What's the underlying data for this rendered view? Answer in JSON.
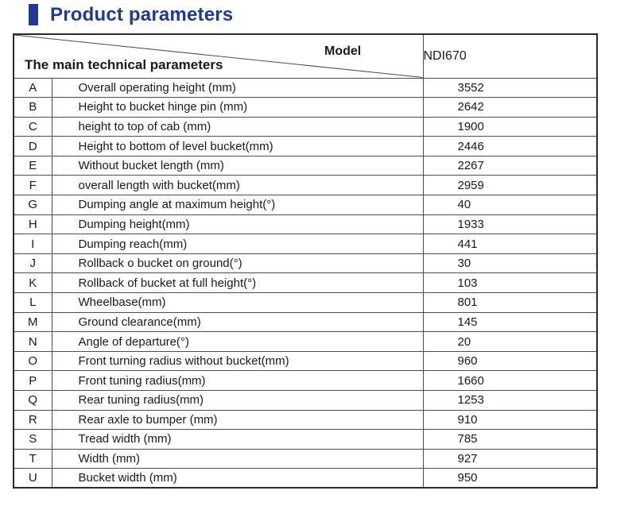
{
  "page": {
    "title": "Product parameters"
  },
  "colors": {
    "accent_blue": "#1e3a96",
    "border_dark": "#2a2a2a",
    "border_inner": "#4d4d4d",
    "text": "#1a1a1a"
  },
  "table": {
    "header": {
      "model_label": "Model",
      "params_label": "The main technical parameters",
      "model_value": "NDI670"
    },
    "rows": [
      {
        "letter": "A",
        "parameter": "Overall operating height (mm)",
        "value": "3552"
      },
      {
        "letter": "B",
        "parameter": "Height to bucket hinge pin (mm)",
        "value": "2642"
      },
      {
        "letter": "C",
        "parameter": "height to top of cab (mm)",
        "value": "1900"
      },
      {
        "letter": "D",
        "parameter": "Height to bottom of level bucket(mm)",
        "value": "2446"
      },
      {
        "letter": "E",
        "parameter": "Without bucket length  (mm)",
        "value": "2267"
      },
      {
        "letter": "F",
        "parameter": "overall length with bucket(mm)",
        "value": "2959"
      },
      {
        "letter": "G",
        "parameter": "Dumping angle at maximum height(°)",
        "value": "40"
      },
      {
        "letter": "H",
        "parameter": "Dumping height(mm)",
        "value": "1933"
      },
      {
        "letter": "I",
        "parameter": "Dumping reach(mm)",
        "value": "441"
      },
      {
        "letter": "J",
        "parameter": "Rollback o bucket on ground(°)",
        "value": "30"
      },
      {
        "letter": "K",
        "parameter": "Rollback of bucket at full height(°)",
        "value": "103"
      },
      {
        "letter": "L",
        "parameter": "Wheelbase(mm)",
        "value": "801"
      },
      {
        "letter": "M",
        "parameter": "Ground clearance(mm)",
        "value": "145"
      },
      {
        "letter": "N",
        "parameter": "Angle of departure(°)",
        "value": "20"
      },
      {
        "letter": "O",
        "parameter": "Front turning radius without bucket(mm)",
        "value": "960"
      },
      {
        "letter": "P",
        "parameter": "Front tuning radius(mm)",
        "value": "1660"
      },
      {
        "letter": "Q",
        "parameter": "Rear tuning radius(mm)",
        "value": "1253"
      },
      {
        "letter": "R",
        "parameter": "Rear axle to bumper (mm)",
        "value": "910"
      },
      {
        "letter": "S",
        "parameter": "Tread width (mm)",
        "value": "785"
      },
      {
        "letter": "T",
        "parameter": "Width (mm)",
        "value": "927"
      },
      {
        "letter": "U",
        "parameter": "Bucket width (mm)",
        "value": "950"
      }
    ]
  }
}
